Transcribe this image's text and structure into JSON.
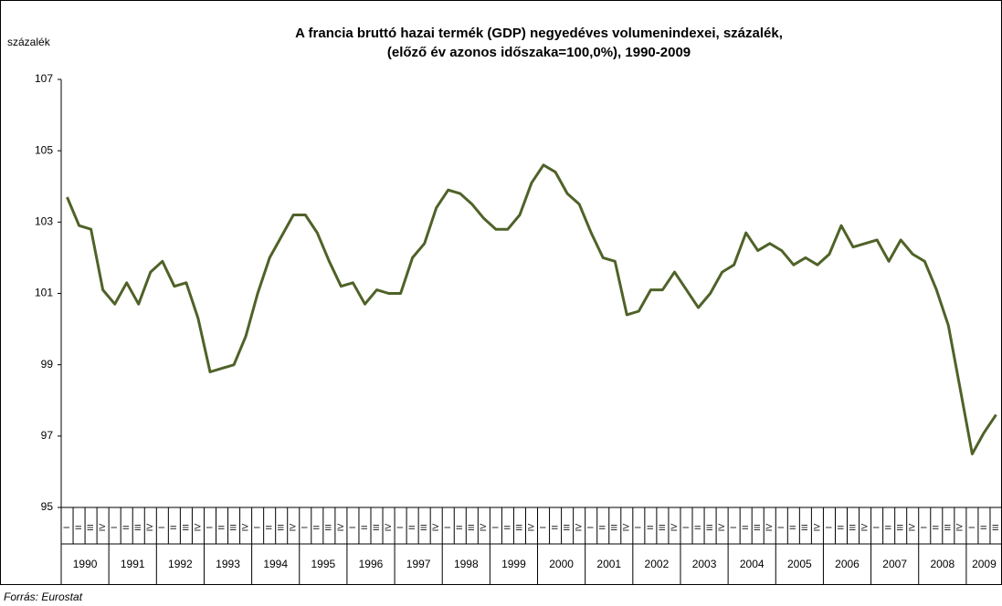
{
  "chart_data": {
    "type": "line",
    "title": [
      "A francia bruttó hazai termék (GDP) negyedéves volumenindexei, százalék,",
      "(előző év azonos időszaka=100,0%), 1990-2009"
    ],
    "y_label": "százalék",
    "source": "Forrás: Eurostat",
    "categories": [
      "I",
      "II",
      "III",
      "IV",
      "I",
      "II",
      "III",
      "IV",
      "I",
      "II",
      "III",
      "IV",
      "I",
      "II",
      "III",
      "IV",
      "I",
      "II",
      "III",
      "IV",
      "I",
      "II",
      "III",
      "IV",
      "I",
      "II",
      "III",
      "IV",
      "I",
      "II",
      "III",
      "IV",
      "I",
      "II",
      "III",
      "IV",
      "I",
      "II",
      "III",
      "IV",
      "I",
      "II",
      "III",
      "IV",
      "I",
      "II",
      "III",
      "IV",
      "I",
      "II",
      "III",
      "IV",
      "I",
      "II",
      "III",
      "IV",
      "I",
      "II",
      "III",
      "IV",
      "I",
      "II",
      "III",
      "IV",
      "I",
      "II",
      "III",
      "IV",
      "I",
      "II",
      "III",
      "IV",
      "I",
      "II",
      "III",
      "IV",
      "I",
      "II",
      "III"
    ],
    "year_labels": [
      "1990",
      "1991",
      "1992",
      "1993",
      "1994",
      "1995",
      "1996",
      "1997",
      "1998",
      "1999",
      "2000",
      "2001",
      "2002",
      "2003",
      "2004",
      "2005",
      "2006",
      "2007",
      "2008",
      "2009"
    ],
    "values": [
      103.7,
      102.9,
      102.8,
      101.1,
      100.7,
      101.3,
      100.7,
      101.6,
      101.9,
      101.2,
      101.3,
      100.3,
      98.8,
      98.9,
      99.0,
      99.8,
      101.0,
      102.0,
      102.6,
      103.2,
      103.2,
      102.7,
      101.9,
      101.2,
      101.3,
      100.7,
      101.1,
      101.0,
      101.0,
      102.0,
      102.4,
      103.4,
      103.9,
      103.8,
      103.5,
      103.1,
      102.8,
      102.8,
      103.2,
      104.1,
      104.6,
      104.4,
      103.8,
      103.5,
      102.7,
      102.0,
      101.9,
      100.4,
      100.5,
      101.1,
      101.1,
      101.6,
      101.1,
      100.6,
      101.0,
      101.6,
      101.8,
      102.7,
      102.2,
      102.4,
      102.2,
      101.8,
      102.0,
      101.8,
      102.1,
      102.9,
      102.3,
      102.4,
      102.5,
      101.9,
      102.5,
      102.1,
      101.9,
      101.1,
      100.1,
      98.3,
      96.5,
      97.1,
      97.6
    ],
    "color": "#4f6228",
    "ylim": [
      95,
      107
    ],
    "yticks": [
      95,
      97,
      99,
      101,
      103,
      105,
      107
    ],
    "grid": false
  }
}
